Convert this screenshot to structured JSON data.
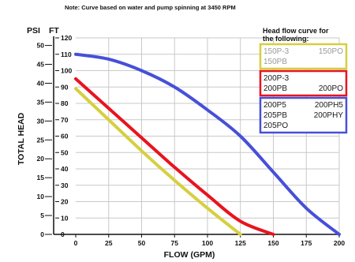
{
  "note": "Note: Curve based on water and pump spinning at 3450 RPM",
  "chart_data": {
    "type": "line",
    "xlabel": "FLOW (GPM)",
    "ylabel": "TOTAL HEAD",
    "y_units": [
      "PSI",
      "FT"
    ],
    "x_ticks": [
      "0",
      "25",
      "50",
      "75",
      "100",
      "125",
      "150",
      "175",
      "200"
    ],
    "xlim": [
      0,
      200
    ],
    "ft_ticks": [
      "0",
      "10",
      "20",
      "30",
      "40",
      "50",
      "60",
      "70",
      "80",
      "90",
      "100",
      "110",
      "120"
    ],
    "ylim_ft": [
      0,
      120
    ],
    "psi_ticks": [
      "0",
      "5",
      "10",
      "15",
      "20",
      "25",
      "30",
      "35",
      "40",
      "45",
      "50"
    ],
    "ylim_psi": [
      0,
      52
    ],
    "grid": true,
    "legend_position": "top-right",
    "legend_title": [
      "Head flow curve for",
      "the following:"
    ],
    "series": [
      {
        "color": "#d6cf3f",
        "models": [
          [
            "150P-3",
            "150PO"
          ],
          [
            "150PB"
          ]
        ],
        "x": [
          0,
          25,
          50,
          75,
          100,
          125
        ],
        "y": [
          89,
          70,
          51,
          33,
          16,
          0
        ]
      },
      {
        "color": "#e8141e",
        "models": [
          [
            "200P-3"
          ],
          [
            "200PB",
            "200PO"
          ]
        ],
        "x": [
          0,
          25,
          50,
          75,
          100,
          125,
          150
        ],
        "y": [
          95,
          77,
          59,
          41,
          24,
          8,
          0
        ]
      },
      {
        "color": "#4650d8",
        "models": [
          [
            "200P5",
            "200PH5"
          ],
          [
            "205PB",
            "200PHY"
          ],
          [
            "205PO"
          ]
        ],
        "x": [
          0,
          25,
          50,
          75,
          100,
          125,
          150,
          175,
          200
        ],
        "y": [
          110,
          107,
          100,
          90,
          76,
          60,
          38,
          16,
          0
        ]
      }
    ]
  }
}
